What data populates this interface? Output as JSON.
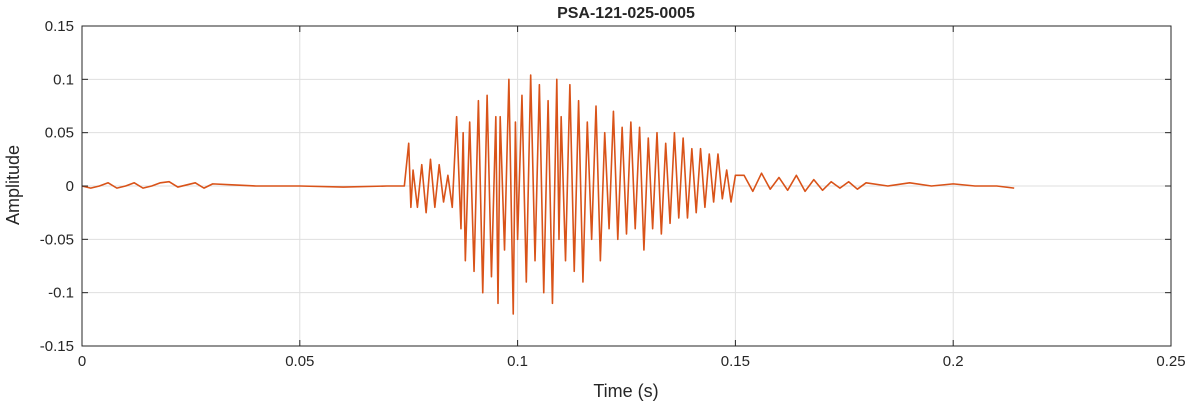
{
  "chart_data": {
    "type": "line",
    "title": "PSA-121-025-0005",
    "xlabel": "Time (s)",
    "ylabel": "Amplitude",
    "xlim": [
      0,
      0.25
    ],
    "ylim": [
      -0.15,
      0.15
    ],
    "xticks": [
      0,
      0.05,
      0.1,
      0.15,
      0.2,
      0.25
    ],
    "xtick_labels": [
      "0",
      "0.05",
      "0.1",
      "0.15",
      "0.2",
      "0.25"
    ],
    "yticks": [
      -0.15,
      -0.1,
      -0.05,
      0,
      0.05,
      0.1,
      0.15
    ],
    "ytick_labels": [
      "-0.15",
      "-0.1",
      "-0.05",
      "0",
      "0.05",
      "0.1",
      "0.15"
    ],
    "grid": true,
    "series": [
      {
        "color": "#d95319",
        "x": [
          0.0,
          0.002,
          0.004,
          0.006,
          0.008,
          0.01,
          0.012,
          0.014,
          0.016,
          0.018,
          0.02,
          0.022,
          0.024,
          0.026,
          0.028,
          0.03,
          0.035,
          0.04,
          0.05,
          0.06,
          0.07,
          0.074,
          0.075,
          0.0755,
          0.076,
          0.077,
          0.078,
          0.079,
          0.08,
          0.081,
          0.082,
          0.083,
          0.084,
          0.085,
          0.086,
          0.087,
          0.0875,
          0.088,
          0.089,
          0.09,
          0.091,
          0.092,
          0.093,
          0.094,
          0.095,
          0.0955,
          0.096,
          0.097,
          0.098,
          0.099,
          0.0995,
          0.1,
          0.101,
          0.102,
          0.103,
          0.104,
          0.105,
          0.106,
          0.107,
          0.108,
          0.109,
          0.1095,
          0.11,
          0.111,
          0.112,
          0.113,
          0.114,
          0.115,
          0.116,
          0.117,
          0.118,
          0.119,
          0.12,
          0.121,
          0.122,
          0.123,
          0.124,
          0.125,
          0.126,
          0.127,
          0.128,
          0.129,
          0.13,
          0.131,
          0.132,
          0.133,
          0.134,
          0.135,
          0.136,
          0.137,
          0.138,
          0.139,
          0.14,
          0.141,
          0.142,
          0.143,
          0.144,
          0.145,
          0.146,
          0.147,
          0.148,
          0.149,
          0.15,
          0.152,
          0.154,
          0.156,
          0.158,
          0.16,
          0.162,
          0.164,
          0.166,
          0.168,
          0.17,
          0.172,
          0.174,
          0.176,
          0.178,
          0.18,
          0.185,
          0.19,
          0.195,
          0.2,
          0.205,
          0.21,
          0.214
        ],
        "y": [
          0.0,
          -0.002,
          0.0,
          0.003,
          -0.002,
          0.0,
          0.003,
          -0.002,
          0.0,
          0.003,
          0.004,
          -0.001,
          0.001,
          0.003,
          -0.002,
          0.002,
          0.001,
          0.0,
          0.0,
          -0.001,
          0.0,
          0.0,
          0.04,
          -0.02,
          0.015,
          -0.02,
          0.02,
          -0.025,
          0.025,
          -0.02,
          0.02,
          -0.015,
          0.01,
          -0.02,
          0.065,
          -0.04,
          0.05,
          -0.07,
          0.06,
          -0.08,
          0.08,
          -0.1,
          0.085,
          -0.085,
          0.065,
          -0.11,
          0.065,
          -0.06,
          0.1,
          -0.12,
          0.06,
          -0.05,
          0.085,
          -0.09,
          0.104,
          -0.07,
          0.095,
          -0.1,
          0.08,
          -0.11,
          0.1,
          -0.05,
          0.065,
          -0.07,
          0.095,
          -0.08,
          0.08,
          -0.09,
          0.06,
          -0.05,
          0.075,
          -0.07,
          0.05,
          -0.04,
          0.07,
          -0.05,
          0.055,
          -0.045,
          0.06,
          -0.04,
          0.055,
          -0.06,
          0.045,
          -0.04,
          0.05,
          -0.045,
          0.04,
          -0.035,
          0.05,
          -0.03,
          0.045,
          -0.03,
          0.035,
          -0.025,
          0.035,
          -0.02,
          0.03,
          -0.015,
          0.03,
          -0.012,
          0.015,
          -0.015,
          0.01,
          0.01,
          -0.005,
          0.012,
          -0.003,
          0.008,
          -0.004,
          0.01,
          -0.005,
          0.006,
          -0.004,
          0.004,
          -0.002,
          0.004,
          -0.003,
          0.003,
          0.0,
          0.003,
          0.0,
          0.002,
          0.0,
          0.0,
          -0.002
        ]
      }
    ]
  }
}
